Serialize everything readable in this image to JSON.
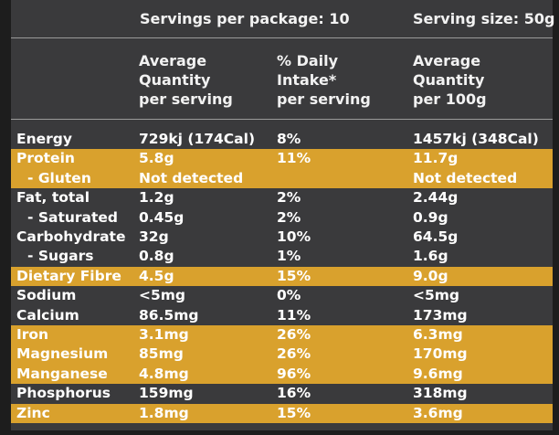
{
  "header": {
    "servings_per_package": "Servings per package: 10",
    "serving_size": "Serving size: 50g"
  },
  "columns": {
    "per_serving": [
      "Average",
      "Quantity",
      "per serving"
    ],
    "daily_intake": [
      "% Daily",
      "Intake*",
      "per serving"
    ],
    "per_100g": [
      "Average",
      "Quantity",
      "per 100g"
    ]
  },
  "rows": [
    {
      "name": "Energy",
      "sub": false,
      "hl": false,
      "per_serving": "729kj (174Cal)",
      "daily_intake": "8%",
      "per_100g": "1457kj (348Cal)"
    },
    {
      "name": "Protein",
      "sub": false,
      "hl": true,
      "per_serving": "5.8g",
      "daily_intake": "11%",
      "per_100g": "11.7g"
    },
    {
      "name": "- Gluten",
      "sub": true,
      "hl": true,
      "per_serving": "Not detected",
      "daily_intake": "",
      "per_100g": "Not detected"
    },
    {
      "name": "Fat, total",
      "sub": false,
      "hl": false,
      "per_serving": "1.2g",
      "daily_intake": "2%",
      "per_100g": "2.44g"
    },
    {
      "name": "- Saturated",
      "sub": true,
      "hl": false,
      "per_serving": "0.45g",
      "daily_intake": "2%",
      "per_100g": "0.9g"
    },
    {
      "name": "Carbohydrate",
      "sub": false,
      "hl": false,
      "per_serving": "32g",
      "daily_intake": "10%",
      "per_100g": "64.5g"
    },
    {
      "name": "- Sugars",
      "sub": true,
      "hl": false,
      "per_serving": "0.8g",
      "daily_intake": "1%",
      "per_100g": "1.6g"
    },
    {
      "name": "Dietary Fibre",
      "sub": false,
      "hl": true,
      "per_serving": "4.5g",
      "daily_intake": "15%",
      "per_100g": "9.0g"
    },
    {
      "name": "Sodium",
      "sub": false,
      "hl": false,
      "per_serving": "<5mg",
      "daily_intake": "0%",
      "per_100g": "<5mg"
    },
    {
      "name": "Calcium",
      "sub": false,
      "hl": false,
      "per_serving": "86.5mg",
      "daily_intake": "11%",
      "per_100g": "173mg"
    },
    {
      "name": "Iron",
      "sub": false,
      "hl": true,
      "per_serving": "3.1mg",
      "daily_intake": "26%",
      "per_100g": "6.3mg"
    },
    {
      "name": "Magnesium",
      "sub": false,
      "hl": true,
      "per_serving": "85mg",
      "daily_intake": "26%",
      "per_100g": "170mg"
    },
    {
      "name": "Manganese",
      "sub": false,
      "hl": true,
      "per_serving": "4.8mg",
      "daily_intake": "96%",
      "per_100g": "9.6mg"
    },
    {
      "name": "Phosphorus",
      "sub": false,
      "hl": false,
      "per_serving": "159mg",
      "daily_intake": "16%",
      "per_100g": "318mg"
    },
    {
      "name": "Zinc",
      "sub": false,
      "hl": true,
      "per_serving": "1.8mg",
      "daily_intake": "15%",
      "per_100g": "3.6mg"
    }
  ],
  "colors": {
    "highlight": "#d9a12d",
    "panel": "#3a3a3c",
    "page": "#1d1d1d"
  }
}
